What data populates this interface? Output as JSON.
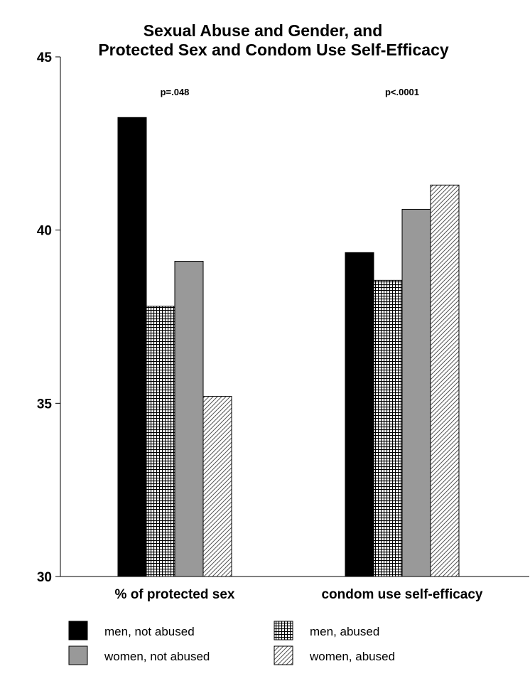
{
  "chart_data": {
    "type": "bar",
    "title": "Sexual Abuse and Gender, and",
    "subtitle": "Protected Sex and Condom Use Self-Efficacy",
    "xlabel": "",
    "ylabel": "",
    "ylim": [
      30,
      45
    ],
    "yticks": [
      "30",
      "35",
      "40",
      "45"
    ],
    "grid": false,
    "legend_position": "bottom",
    "categories": [
      "% of protected sex",
      "condom use self-efficacy"
    ],
    "annotations": [
      "p=.048",
      "p<.0001"
    ],
    "series": [
      {
        "name": "men, not abused",
        "values": [
          43.25,
          39.35
        ],
        "pattern": "solid",
        "color": "#000000"
      },
      {
        "name": "men, abused",
        "values": [
          37.8,
          38.55
        ],
        "pattern": "grid",
        "color": "#000000"
      },
      {
        "name": "women, not abused",
        "values": [
          39.1,
          40.6
        ],
        "pattern": "solid",
        "color": "#999999"
      },
      {
        "name": "women, abused",
        "values": [
          35.2,
          41.3
        ],
        "pattern": "hatch",
        "color": "#ffffff"
      }
    ]
  }
}
